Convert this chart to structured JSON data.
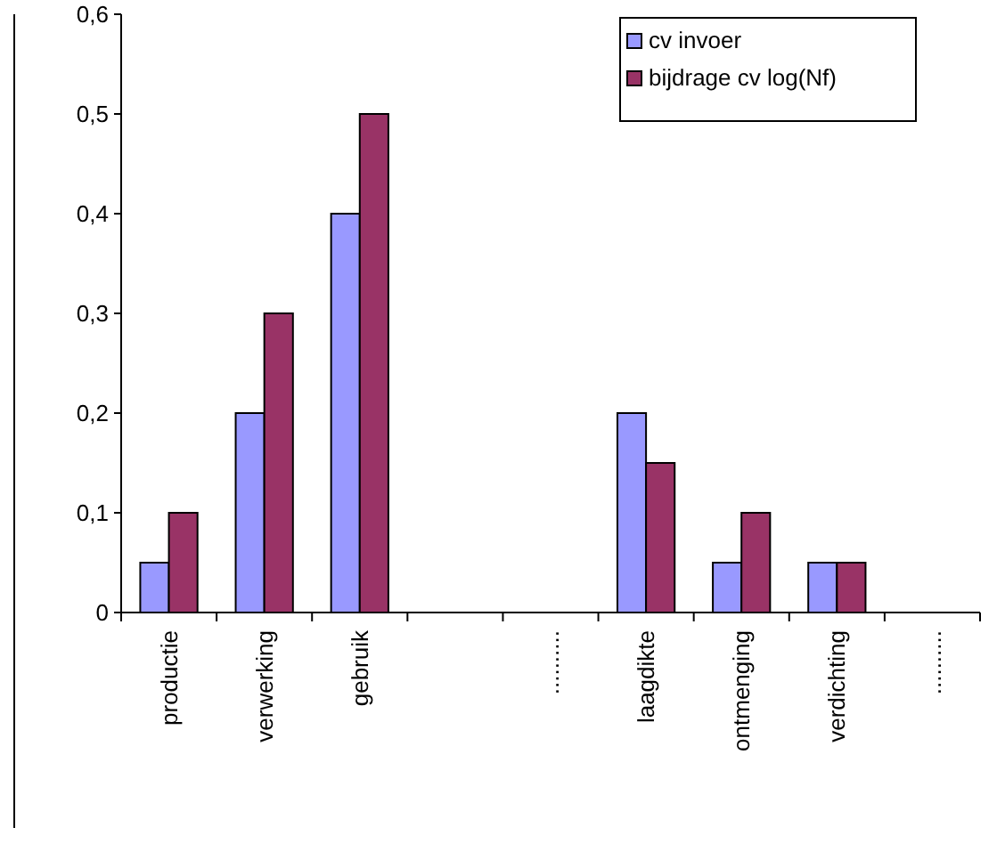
{
  "chart_data": {
    "type": "bar",
    "categories": [
      "productie",
      "verwerking",
      "gebruik",
      null,
      "..........",
      "laagdikte",
      "ontmenging",
      "verdichting",
      ".........."
    ],
    "series": [
      {
        "name": "cv invoer",
        "color": "#9999ff",
        "values": [
          0.05,
          0.2,
          0.4,
          null,
          null,
          0.2,
          0.05,
          0.05,
          null
        ]
      },
      {
        "name": "bijdrage cv log(Nf)",
        "color": "#993366",
        "values": [
          0.1,
          0.3,
          0.5,
          null,
          null,
          0.15,
          0.1,
          0.05,
          null
        ]
      }
    ],
    "ylim": [
      0,
      0.6
    ],
    "yticks": [
      {
        "value": 0,
        "label": "0"
      },
      {
        "value": 0.1,
        "label": "0,1"
      },
      {
        "value": 0.2,
        "label": "0,2"
      },
      {
        "value": 0.3,
        "label": "0,3"
      },
      {
        "value": 0.4,
        "label": "0,4"
      },
      {
        "value": 0.5,
        "label": "0,5"
      },
      {
        "value": 0.6,
        "label": "0,6"
      }
    ],
    "grid": false,
    "legend": "top right"
  }
}
